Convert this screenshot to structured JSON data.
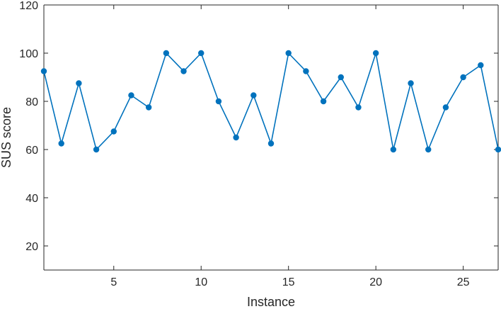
{
  "chart_data": {
    "type": "line",
    "xlabel": "Instance",
    "ylabel": "SUS score",
    "xlim": [
      1,
      27
    ],
    "ylim": [
      10,
      120
    ],
    "xticks": [
      5,
      10,
      15,
      20,
      25
    ],
    "yticks": [
      20,
      40,
      60,
      80,
      100,
      120
    ],
    "grid": false,
    "series": [
      {
        "color": "#0072BD",
        "x": [
          1,
          2,
          3,
          4,
          5,
          6,
          7,
          8,
          9,
          10,
          11,
          12,
          13,
          14,
          15,
          16,
          17,
          18,
          19,
          20,
          21,
          22,
          23,
          24,
          25,
          26,
          27
        ],
        "y": [
          92.5,
          62.5,
          87.5,
          60,
          67.5,
          82.5,
          77.5,
          100,
          92.5,
          100,
          80,
          65,
          82.5,
          62.5,
          100,
          92.5,
          80,
          90,
          77.5,
          100,
          60,
          87.5,
          60,
          77.5,
          90,
          95,
          60
        ]
      }
    ]
  }
}
